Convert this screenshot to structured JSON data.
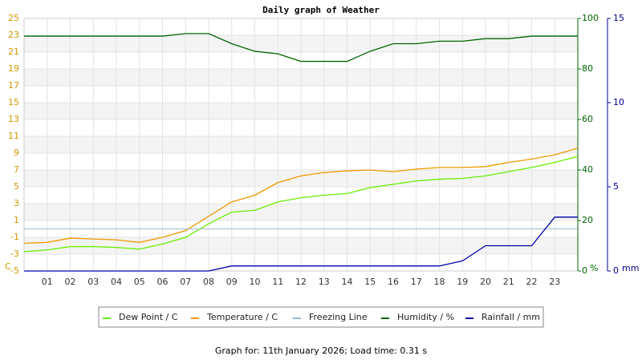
{
  "chart_data": {
    "type": "line",
    "title": "Daily graph of Weather",
    "footer": "Graph for: 11th January 2026; Load time: 0.31 s",
    "y_unit": "C",
    "y2_unit": "%",
    "y3_unit": "mm",
    "grid": true,
    "x": [
      0,
      1,
      2,
      3,
      4,
      5,
      6,
      7,
      8,
      9,
      10,
      11,
      12,
      13,
      14,
      15,
      16,
      17,
      18,
      19,
      20,
      21,
      22,
      23,
      24
    ],
    "xlim": [
      0,
      24
    ],
    "xticks": [
      {
        "value": 1,
        "label": "01"
      },
      {
        "value": 2,
        "label": "02"
      },
      {
        "value": 3,
        "label": "03"
      },
      {
        "value": 4,
        "label": "04"
      },
      {
        "value": 5,
        "label": "05"
      },
      {
        "value": 6,
        "label": "06"
      },
      {
        "value": 7,
        "label": "07"
      },
      {
        "value": 8,
        "label": "08"
      },
      {
        "value": 9,
        "label": "09"
      },
      10,
      11,
      12,
      13,
      14,
      15,
      16,
      17,
      18,
      19,
      20,
      21,
      22,
      23
    ],
    "ylim": [
      -5,
      25
    ],
    "yticks": [
      -5,
      -3,
      -1,
      1,
      3,
      5,
      7,
      9,
      11,
      13,
      15,
      17,
      19,
      21,
      23,
      25
    ],
    "y2lim": [
      0,
      100
    ],
    "y2ticks": [
      0,
      20,
      40,
      60,
      80,
      100
    ],
    "y3lim": [
      0,
      15
    ],
    "y3ticks": [
      0,
      5,
      10,
      15
    ],
    "series": [
      {
        "name": "Dew Point / C",
        "color": "#66ee00",
        "axis": "y",
        "values": [
          -2.7,
          -2.5,
          -2.1,
          -2.1,
          -2.2,
          -2.4,
          -1.8,
          -1.0,
          0.6,
          2.0,
          2.2,
          3.2,
          3.7,
          4.0,
          4.2,
          4.9,
          5.3,
          5.7,
          5.9,
          6.0,
          6.3,
          6.8,
          7.3,
          7.9,
          8.6
        ]
      },
      {
        "name": "Temperature / C",
        "color": "#ee9900",
        "axis": "y",
        "values": [
          -1.7,
          -1.6,
          -1.1,
          -1.2,
          -1.3,
          -1.6,
          -1.0,
          -0.2,
          1.5,
          3.2,
          4.0,
          5.5,
          6.3,
          6.7,
          6.9,
          7.0,
          6.8,
          7.1,
          7.3,
          7.3,
          7.4,
          7.9,
          8.3,
          8.8,
          9.6
        ]
      },
      {
        "name": "Freezing Line",
        "color": "#99bbcc",
        "axis": "y",
        "value": 0
      },
      {
        "name": "Humidity / %",
        "color": "#006600",
        "axis": "y2",
        "values": [
          93,
          93,
          93,
          93,
          93,
          93,
          93,
          94,
          94,
          90,
          87,
          86,
          83,
          83,
          83,
          87,
          90,
          90,
          91,
          91,
          92,
          92,
          93,
          93,
          93
        ]
      },
      {
        "name": "Rainfall / mm",
        "color": "#0000aa",
        "axis": "y3",
        "values": [
          0,
          0,
          0,
          0,
          0,
          0,
          0,
          0,
          0,
          0.3,
          0.3,
          0.3,
          0.3,
          0.3,
          0.3,
          0.3,
          0.3,
          0.3,
          0.3,
          0.6,
          1.5,
          1.5,
          1.5,
          3.2,
          3.2
        ]
      }
    ]
  }
}
